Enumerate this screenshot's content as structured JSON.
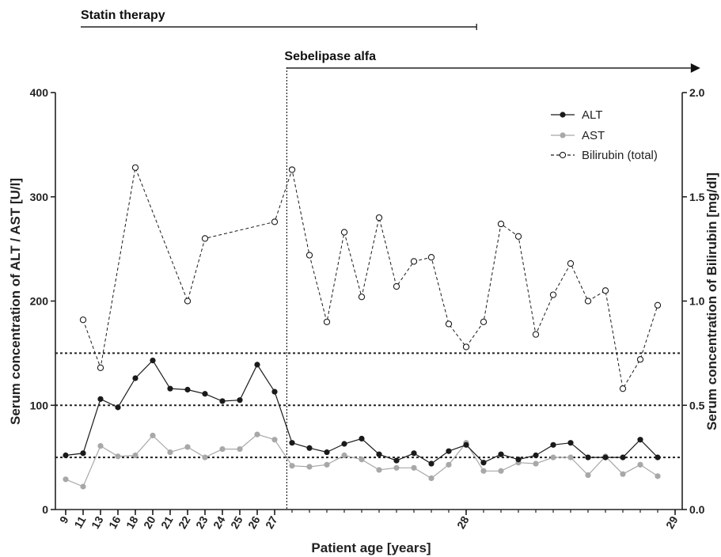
{
  "chart_data": {
    "type": "line",
    "xlabel": "Patient age [years]",
    "ylabel_left": "Serum concentration of ALT / AST [U/l]",
    "ylabel_right": "Serum concentration of Bilirubin [mg/dl]",
    "ylim_left": [
      0,
      400
    ],
    "ylim_right": [
      0,
      2.0
    ],
    "yticks_left": [
      "0",
      "100",
      "200",
      "300",
      "400"
    ],
    "yticks_right": [
      "0.0",
      "0.5",
      "1.0",
      "1.5",
      "2.0"
    ],
    "x_tick_labels": [
      "9",
      "11",
      "13",
      "16",
      "18",
      "20",
      "21",
      "22",
      "23",
      "24",
      "25",
      "26",
      "27",
      "28",
      "29"
    ],
    "x_tick_indices": [
      0,
      1,
      2,
      3,
      4,
      5,
      6,
      7,
      8,
      9,
      10,
      11,
      12,
      23,
      35
    ],
    "point_count": 36,
    "therapy_start_index": 12.7,
    "therapies": [
      {
        "label": "Statin therapy",
        "start_index": 1,
        "end_index": 23.6,
        "ongoing": false
      },
      {
        "label": "Sebelipase alfa",
        "start_index": 12.7,
        "end_index": 35.9,
        "ongoing": true
      }
    ],
    "reference_lines": [
      {
        "axis": "left",
        "value": 150
      },
      {
        "axis": "left",
        "value": 100
      },
      {
        "axis": "left",
        "value": 50
      }
    ],
    "legend_position": "top-right",
    "series": [
      {
        "name": "ALT",
        "axis": "left",
        "color": "#1a1a1a",
        "marker": "filled",
        "dashed": false,
        "x_start": 0,
        "values": [
          52,
          54,
          106,
          98,
          126,
          143,
          116,
          115,
          111,
          104,
          105,
          139,
          113,
          64,
          59,
          55,
          63,
          68,
          53,
          47,
          54,
          44,
          56,
          62,
          45,
          53,
          48,
          52,
          62,
          64,
          50,
          50,
          50,
          67,
          50
        ]
      },
      {
        "name": "AST",
        "axis": "left",
        "color": "#a8a8a8",
        "marker": "filled",
        "dashed": false,
        "x_start": 0,
        "values": [
          29,
          22,
          61,
          51,
          52,
          71,
          55,
          60,
          50,
          58,
          58,
          72,
          67,
          42,
          41,
          43,
          52,
          48,
          38,
          40,
          40,
          30,
          43,
          64,
          37,
          37,
          45,
          44,
          50,
          50,
          33,
          51,
          34,
          43,
          32
        ]
      },
      {
        "name": "Bilirubin (total)",
        "axis": "right",
        "color": "#1a1a1a",
        "marker": "open",
        "dashed": true,
        "x_start": 1,
        "values": [
          0.91,
          0.68,
          null,
          1.64,
          null,
          null,
          1.0,
          1.3,
          null,
          null,
          null,
          1.38,
          1.63,
          1.22,
          0.9,
          1.33,
          1.02,
          1.4,
          1.07,
          1.19,
          1.21,
          0.89,
          0.78,
          0.9,
          1.37,
          1.31,
          0.84,
          1.03,
          1.18,
          1.0,
          1.05,
          0.58,
          0.72,
          0.98
        ]
      }
    ]
  }
}
